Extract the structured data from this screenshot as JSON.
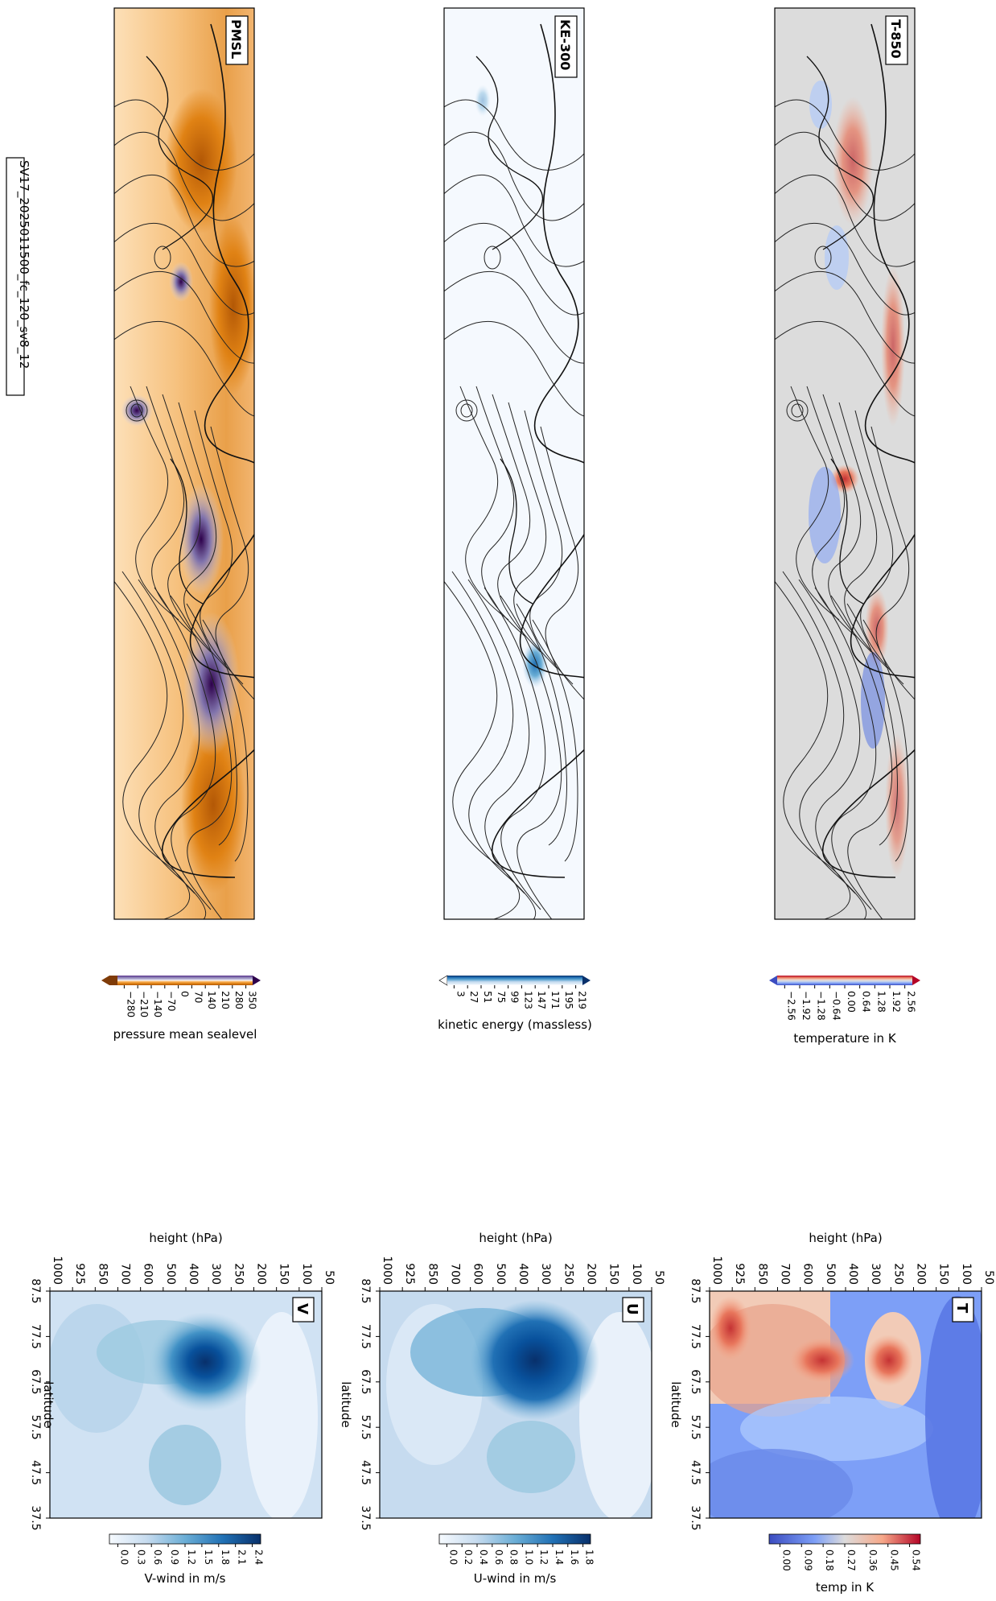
{
  "figure_label": "SV17_2025011500_fc_120_sv8_12",
  "colors": {
    "pmsl_cmap": [
      "#7f3b08",
      "#b35806",
      "#e08214",
      "#fdb863",
      "#fee0b6",
      "#f7f7f7",
      "#d8daeb",
      "#b2abd2",
      "#8073ac",
      "#542788",
      "#2d004b"
    ],
    "ke_cmap": [
      "#ffffff",
      "#f7fbff",
      "#deebf7",
      "#c6dbef",
      "#9ecae1",
      "#6baed6",
      "#4292c6",
      "#2171b5",
      "#08519c",
      "#08306b"
    ],
    "t_cmap": [
      "#3b4cc0",
      "#5a78e4",
      "#7d9ff7",
      "#aac7fd",
      "#cfdaea",
      "#dddcdc",
      "#f2cbb7",
      "#f7a889",
      "#e8765c",
      "#c53334",
      "#b40426"
    ]
  },
  "chart_data": [
    {
      "type": "heatmap",
      "panel": "PMSL",
      "label": "PMSL",
      "colorbar_label": "pressure mean sealevel",
      "colorbar_ticks": [
        "−280",
        "−210",
        "−140",
        "−70",
        "0",
        "70",
        "140",
        "210",
        "280",
        "350"
      ],
      "colorbar_range": [
        -350,
        350
      ],
      "extend": "both",
      "cmap": "PuOr"
    },
    {
      "type": "heatmap",
      "panel": "KE-300",
      "label": "KE-300",
      "colorbar_label": "kinetic energy (massless)",
      "colorbar_ticks": [
        "3",
        "27",
        "51",
        "75",
        "99",
        "123",
        "147",
        "171",
        "195",
        "219"
      ],
      "colorbar_range": [
        3,
        243
      ],
      "extend": "both",
      "cmap": "Blues"
    },
    {
      "type": "heatmap",
      "panel": "T-850",
      "label": "T-850",
      "colorbar_label": "temperature in K",
      "colorbar_ticks": [
        "−2.56",
        "−1.92",
        "−1.28",
        "−0.64",
        "0.00",
        "0.64",
        "1.28",
        "1.92",
        "2.56"
      ],
      "colorbar_range": [
        -2.88,
        2.88
      ],
      "extend": "both",
      "cmap": "coolwarm"
    },
    {
      "type": "heatmap",
      "panel": "V",
      "label": "V",
      "xlabel": "latitude",
      "ylabel": "height (hPa)",
      "x_ticks": [
        "87.5",
        "77.5",
        "67.5",
        "57.5",
        "47.5",
        "37.5"
      ],
      "y_ticks": [
        "1000",
        "925",
        "850",
        "700",
        "600",
        "500",
        "400",
        "300",
        "250",
        "200",
        "150",
        "100",
        "50"
      ],
      "colorbar_label": "V-wind in m/s",
      "colorbar_ticks": [
        "0.0",
        "0.3",
        "0.6",
        "0.9",
        "1.2",
        "1.5",
        "1.8",
        "2.1",
        "2.4"
      ],
      "colorbar_range": [
        0,
        2.55
      ],
      "peak": {
        "latitude": 71,
        "height_hPa": 300,
        "value": 2.4
      }
    },
    {
      "type": "heatmap",
      "panel": "U",
      "label": "U",
      "xlabel": "latitude",
      "ylabel": "height (hPa)",
      "x_ticks": [
        "87.5",
        "77.5",
        "67.5",
        "57.5",
        "47.5",
        "37.5"
      ],
      "y_ticks": [
        "1000",
        "925",
        "850",
        "700",
        "600",
        "500",
        "400",
        "300",
        "250",
        "200",
        "150",
        "100",
        "50"
      ],
      "colorbar_label": "U-wind in m/s",
      "colorbar_ticks": [
        "0.0",
        "0.2",
        "0.4",
        "0.6",
        "0.8",
        "1.0",
        "1.2",
        "1.4",
        "1.6",
        "1.8"
      ],
      "colorbar_range": [
        0,
        1.9
      ],
      "peak": {
        "latitude": 71,
        "height_hPa": 300,
        "value": 1.8
      }
    },
    {
      "type": "heatmap",
      "panel": "T",
      "label": "T",
      "xlabel": "latitude",
      "ylabel": "height (hPa)",
      "x_ticks": [
        "87.5",
        "77.5",
        "67.5",
        "57.5",
        "47.5",
        "37.5"
      ],
      "y_ticks": [
        "1000",
        "925",
        "850",
        "700",
        "600",
        "500",
        "400",
        "300",
        "250",
        "200",
        "150",
        "100",
        "50"
      ],
      "colorbar_label": "temp in K",
      "colorbar_ticks": [
        "0.00",
        "0.09",
        "0.18",
        "0.27",
        "0.36",
        "0.45",
        "0.54"
      ],
      "colorbar_range": [
        0,
        0.6
      ],
      "peaks": [
        {
          "latitude": 79,
          "height_hPa": 925,
          "value": 0.5
        },
        {
          "latitude": 70,
          "height_hPa": 500,
          "value": 0.54
        },
        {
          "latitude": 70,
          "height_hPa": 250,
          "value": 0.45
        }
      ]
    }
  ]
}
